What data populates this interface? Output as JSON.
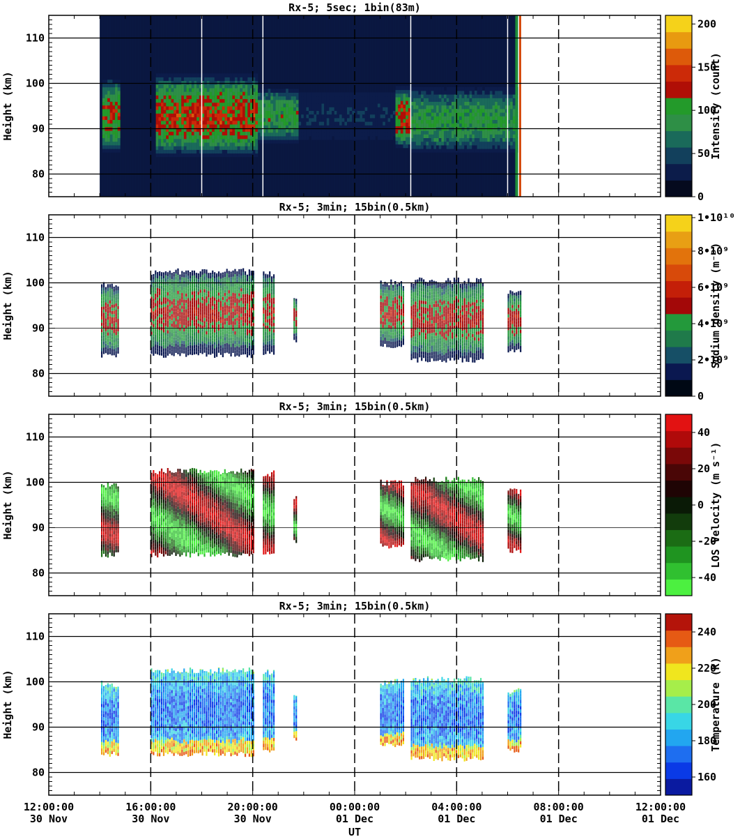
{
  "xaxis": {
    "label": "UT",
    "ticks": [
      {
        "time": "12:00:00",
        "date": "30 Nov"
      },
      {
        "time": "16:00:00",
        "date": "30 Nov"
      },
      {
        "time": "20:00:00",
        "date": "30 Nov"
      },
      {
        "time": "00:00:00",
        "date": "01 Dec"
      },
      {
        "time": "04:00:00",
        "date": "01 Dec"
      },
      {
        "time": "08:00:00",
        "date": "01 Dec"
      },
      {
        "time": "12:00:00",
        "date": "01 Dec"
      }
    ]
  },
  "chart_data": [
    {
      "type": "heatmap",
      "title": "Rx-5;  5sec; 1bin(83m)",
      "ylabel": "Height (km)",
      "ylim": [
        75,
        115
      ],
      "yticks": [
        80,
        90,
        100,
        110
      ],
      "xlim_hours": [
        12,
        36
      ],
      "colorbar": {
        "label": "Intensity (count)",
        "ticks": [
          "0",
          "50",
          "100",
          "150",
          "200"
        ],
        "range": [
          0,
          210
        ],
        "colors": [
          "#050a1e",
          "#0c1c4a",
          "#12405c",
          "#1a6a5a",
          "#2e8f46",
          "#239a2a",
          "#b00e06",
          "#cc2a08",
          "#dd5a0a",
          "#e89a10",
          "#f5d21a"
        ]
      },
      "observations": [
        {
          "start_hour": 14.05,
          "end_hour": 14.7,
          "layer_km": [
            86,
            99
          ],
          "peak": 120
        },
        {
          "start_hour": 16.1,
          "end_hour": 20.2,
          "layer_km": [
            85,
            100
          ],
          "peak": 130
        },
        {
          "start_hour": 20.2,
          "end_hour": 21.8,
          "layer_km": [
            88,
            97
          ],
          "peak": 95
        },
        {
          "start_hour": 21.8,
          "end_hour": 25.6,
          "layer_km": [
            88,
            97
          ],
          "peak": 30
        },
        {
          "start_hour": 25.6,
          "end_hour": 26.2,
          "layer_km": [
            87,
            97
          ],
          "peak": 130
        },
        {
          "start_hour": 26.2,
          "end_hour": 30.4,
          "layer_km": [
            86,
            97
          ],
          "peak": 90
        },
        {
          "start_hour": 30.4,
          "end_hour": 31.0,
          "layer_km": [
            84,
            100
          ],
          "peak": 60
        }
      ]
    },
    {
      "type": "heatmap",
      "title": "Rx-5; 3min; 15bin(0.5km)",
      "ylabel": "Height (km)",
      "ylim": [
        75,
        115
      ],
      "yticks": [
        80,
        90,
        100,
        110
      ],
      "xlim_hours": [
        12,
        36
      ],
      "colorbar": {
        "label": "Sodium density (m⁻³)",
        "ticks": [
          "0",
          "2•10⁹",
          "4•10⁹",
          "6•10⁹",
          "8•10⁹",
          "1•10¹⁰"
        ],
        "range": [
          0,
          10000000000
        ],
        "colors": [
          "#000814",
          "#0a1850",
          "#164f66",
          "#1f7a4a",
          "#23993b",
          "#a30808",
          "#c41f08",
          "#d84a0a",
          "#e2730c",
          "#e89f14",
          "#f5d21a"
        ]
      },
      "observations": [
        {
          "start_hour": 14.05,
          "end_hour": 14.7,
          "bottom_km": 84,
          "top_km": 99.5
        },
        {
          "start_hour": 16.0,
          "end_hour": 20.0,
          "bottom_km": 84,
          "top_km": 102.5
        },
        {
          "start_hour": 20.4,
          "end_hour": 20.8,
          "bottom_km": 84.5,
          "top_km": 102
        },
        {
          "start_hour": 21.6,
          "end_hour": 21.7,
          "bottom_km": 87,
          "top_km": 97
        },
        {
          "start_hour": 25.0,
          "end_hour": 25.9,
          "bottom_km": 86,
          "top_km": 100
        },
        {
          "start_hour": 26.2,
          "end_hour": 29.0,
          "bottom_km": 83,
          "top_km": 100.5
        },
        {
          "start_hour": 30.0,
          "end_hour": 30.5,
          "bottom_km": 85,
          "top_km": 98
        }
      ]
    },
    {
      "type": "heatmap",
      "title": "Rx-5; 3min; 15bin(0.5km)",
      "ylabel": "Height (km)",
      "ylim": [
        75,
        115
      ],
      "yticks": [
        80,
        90,
        100,
        110
      ],
      "xlim_hours": [
        12,
        36
      ],
      "colorbar": {
        "label": "LOS Velocity (m s⁻¹)",
        "ticks": [
          "-40",
          "-20",
          "0",
          "20",
          "40"
        ],
        "range": [
          -50,
          50
        ],
        "colors": [
          "#4cf040",
          "#30c030",
          "#1f9420",
          "#1b6c14",
          "#123c0c",
          "#0a1a06",
          "#1f0404",
          "#4a0606",
          "#7a0808",
          "#b00a0a",
          "#e21212"
        ]
      },
      "observations": [
        {
          "start_hour": 14.05,
          "end_hour": 14.7,
          "bottom_km": 84,
          "top_km": 99.5
        },
        {
          "start_hour": 16.0,
          "end_hour": 20.0,
          "bottom_km": 84,
          "top_km": 102.5
        },
        {
          "start_hour": 20.4,
          "end_hour": 20.8,
          "bottom_km": 84.5,
          "top_km": 102
        },
        {
          "start_hour": 21.6,
          "end_hour": 21.7,
          "bottom_km": 87,
          "top_km": 97
        },
        {
          "start_hour": 25.0,
          "end_hour": 25.9,
          "bottom_km": 86,
          "top_km": 100
        },
        {
          "start_hour": 26.2,
          "end_hour": 29.0,
          "bottom_km": 83,
          "top_km": 100.5
        },
        {
          "start_hour": 30.0,
          "end_hour": 30.5,
          "bottom_km": 85,
          "top_km": 98
        }
      ]
    },
    {
      "type": "heatmap",
      "title": "Rx-5; 3min; 15bin(0.5km)",
      "ylabel": "Height (km)",
      "ylim": [
        75,
        115
      ],
      "yticks": [
        80,
        90,
        100,
        110
      ],
      "xlim_hours": [
        12,
        36
      ],
      "colorbar": {
        "label": "Temperature (K)",
        "ticks": [
          "160",
          "180",
          "200",
          "220",
          "240"
        ],
        "range": [
          150,
          250
        ],
        "colors": [
          "#0a1aa0",
          "#0a3ae6",
          "#1e6ef0",
          "#22a6f0",
          "#38d6e6",
          "#5ae6a6",
          "#a6ee4a",
          "#f0e61e",
          "#f0a01a",
          "#e65a14",
          "#b4140a"
        ]
      },
      "observations": [
        {
          "start_hour": 14.05,
          "end_hour": 14.7,
          "bottom_km": 84,
          "top_km": 99.5
        },
        {
          "start_hour": 16.0,
          "end_hour": 20.0,
          "bottom_km": 84,
          "top_km": 102.5
        },
        {
          "start_hour": 20.4,
          "end_hour": 20.8,
          "bottom_km": 84.5,
          "top_km": 102
        },
        {
          "start_hour": 21.6,
          "end_hour": 21.7,
          "bottom_km": 87,
          "top_km": 97
        },
        {
          "start_hour": 25.0,
          "end_hour": 25.9,
          "bottom_km": 86,
          "top_km": 100
        },
        {
          "start_hour": 26.2,
          "end_hour": 29.0,
          "bottom_km": 83,
          "top_km": 100.5
        },
        {
          "start_hour": 30.0,
          "end_hour": 30.5,
          "bottom_km": 85,
          "top_km": 98
        }
      ]
    }
  ]
}
